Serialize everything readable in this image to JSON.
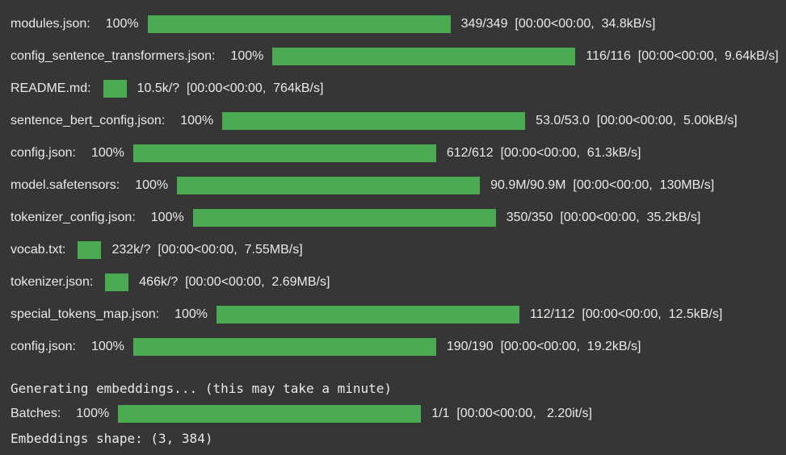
{
  "theme": {
    "background": "#363636",
    "text_color": "#e9e9e9",
    "bar_color": "#4aab53"
  },
  "progress_rows": [
    {
      "label": "modules.json:",
      "percent": "100%",
      "complete": true,
      "stats": "349/349  [00:00<00:00,  34.8kB/s]"
    },
    {
      "label": "config_sentence_transformers.json:",
      "percent": "100%",
      "complete": true,
      "stats": "116/116  [00:00<00:00,  9.64kB/s]"
    },
    {
      "label": "README.md:",
      "percent": "",
      "complete": false,
      "stats": "10.5k/?  [00:00<00:00,  764kB/s]"
    },
    {
      "label": "sentence_bert_config.json:",
      "percent": "100%",
      "complete": true,
      "stats": "53.0/53.0  [00:00<00:00,  5.00kB/s]"
    },
    {
      "label": "config.json:",
      "percent": "100%",
      "complete": true,
      "stats": "612/612  [00:00<00:00,  61.3kB/s]"
    },
    {
      "label": "model.safetensors:",
      "percent": "100%",
      "complete": true,
      "stats": "90.9M/90.9M  [00:00<00:00,  130MB/s]"
    },
    {
      "label": "tokenizer_config.json:",
      "percent": "100%",
      "complete": true,
      "stats": "350/350  [00:00<00:00,  35.2kB/s]"
    },
    {
      "label": "vocab.txt:",
      "percent": "",
      "complete": false,
      "stats": "232k/?  [00:00<00:00,  7.55MB/s]"
    },
    {
      "label": "tokenizer.json:",
      "percent": "",
      "complete": false,
      "stats": "466k/?  [00:00<00:00,  2.69MB/s]"
    },
    {
      "label": "special_tokens_map.json:",
      "percent": "100%",
      "complete": true,
      "stats": "112/112  [00:00<00:00,  12.5kB/s]"
    },
    {
      "label": "config.json:",
      "percent": "100%",
      "complete": true,
      "stats": "190/190  [00:00<00:00,  19.2kB/s]"
    }
  ],
  "batches_rows": [
    {
      "label": "Batches:",
      "percent": "100%",
      "complete": true,
      "stats": "1/1  [00:00<00:00,   2.20it/s]"
    }
  ],
  "messages": {
    "generating": "Generating embeddings... (this may take a minute)",
    "shape": "Embeddings shape: (3, 384)"
  }
}
